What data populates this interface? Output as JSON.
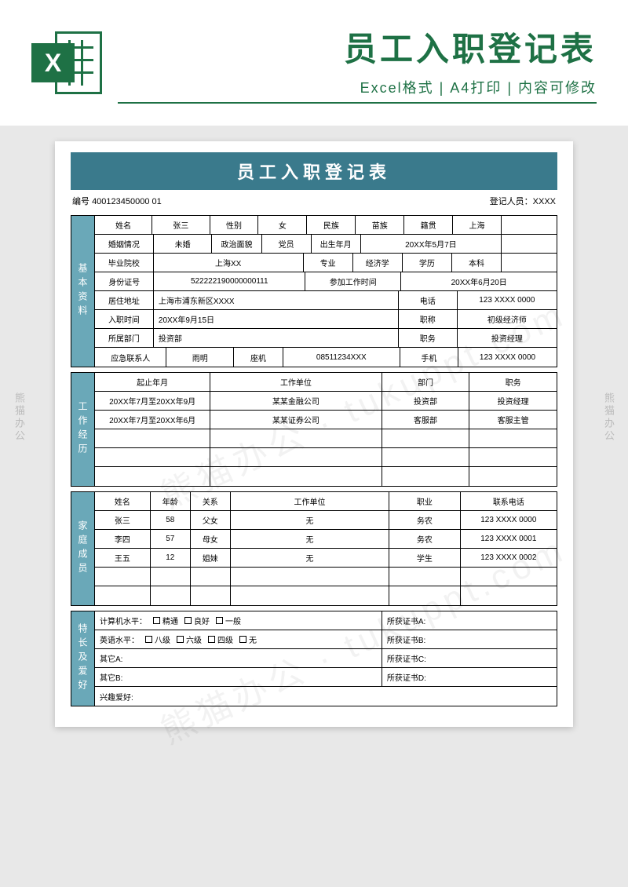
{
  "header": {
    "title": "员工入职登记表",
    "subtitle": "Excel格式 | A4打印 | 内容可修改",
    "icon_letter": "X"
  },
  "colors": {
    "brand_green": "#1e7145",
    "band_teal": "#3a7a8c",
    "side_teal": "#6aa8b8",
    "page_bg": "#e8e8e8"
  },
  "form": {
    "title": "员工入职登记表",
    "meta": {
      "id_label": "编号",
      "id": "400123450000 01",
      "registrar_label": "登记人员：",
      "registrar": "XXXX"
    },
    "sections": {
      "basic": {
        "label": "基本资料",
        "r1": {
          "name_l": "姓名",
          "name": "张三",
          "sex_l": "性别",
          "sex": "女",
          "nation_l": "民族",
          "nation": "苗族",
          "origin_l": "籍贯",
          "origin": "上海"
        },
        "r2": {
          "marital_l": "婚姻情况",
          "marital": "未婚",
          "polit_l": "政治面貌",
          "polit": "党员",
          "birth_l": "出生年月",
          "birth": "20XX年5月7日"
        },
        "r3": {
          "school_l": "毕业院校",
          "school": "上海XX",
          "major_l": "专业",
          "major": "经济学",
          "edu_l": "学历",
          "edu": "本科"
        },
        "r4": {
          "idno_l": "身份证号",
          "idno": "522222190000000111",
          "workdate_l": "参加工作时间",
          "workdate": "20XX年6月20日"
        },
        "r5": {
          "addr_l": "居住地址",
          "addr": "上海市浦东新区XXXX",
          "tel_l": "电话",
          "tel": "123 XXXX 0000"
        },
        "r6": {
          "entry_l": "入职时间",
          "entry": "20XX年9月15日",
          "title_l": "职称",
          "title": "初级经济师"
        },
        "r7": {
          "dept_l": "所属部门",
          "dept": "投资部",
          "duty_l": "职务",
          "duty": "投资经理"
        },
        "r8": {
          "emerg_l": "应急联系人",
          "emerg": "雨明",
          "land_l": "座机",
          "land": "08511234XXX",
          "mob_l": "手机",
          "mob": "123 XXXX 0000"
        }
      },
      "work": {
        "label": "工作经历",
        "headers": {
          "period": "起止年月",
          "company": "工作单位",
          "dept": "部门",
          "duty": "职务"
        },
        "rows": [
          {
            "period": "20XX年7月至20XX年9月",
            "company": "某某金融公司",
            "dept": "投资部",
            "duty": "投资经理"
          },
          {
            "period": "20XX年7月至20XX年6月",
            "company": "某某证券公司",
            "dept": "客服部",
            "duty": "客服主管"
          },
          {
            "period": "",
            "company": "",
            "dept": "",
            "duty": ""
          },
          {
            "period": "",
            "company": "",
            "dept": "",
            "duty": ""
          },
          {
            "period": "",
            "company": "",
            "dept": "",
            "duty": ""
          }
        ]
      },
      "family": {
        "label": "家庭成员",
        "headers": {
          "name": "姓名",
          "age": "年龄",
          "rel": "关系",
          "company": "工作单位",
          "job": "职业",
          "tel": "联系电话"
        },
        "rows": [
          {
            "name": "张三",
            "age": "58",
            "rel": "父女",
            "company": "无",
            "job": "务农",
            "tel": "123 XXXX 0000"
          },
          {
            "name": "李四",
            "age": "57",
            "rel": "母女",
            "company": "无",
            "job": "务农",
            "tel": "123 XXXX 0001"
          },
          {
            "name": "王五",
            "age": "12",
            "rel": "姐妹",
            "company": "无",
            "job": "学生",
            "tel": "123 XXXX 0002"
          },
          {
            "name": "",
            "age": "",
            "rel": "",
            "company": "",
            "job": "",
            "tel": ""
          },
          {
            "name": "",
            "age": "",
            "rel": "",
            "company": "",
            "job": "",
            "tel": ""
          }
        ]
      },
      "skills": {
        "label": "特长及爱好",
        "comp_l": "计算机水平：",
        "comp_opts": [
          "精通",
          "良好",
          "一般"
        ],
        "eng_l": "英语水平：",
        "eng_opts": [
          "八级",
          "六级",
          "四级",
          "无"
        ],
        "otherA_l": "其它A:",
        "otherB_l": "其它B:",
        "hobby_l": "兴趣爱好:",
        "certA_l": "所获证书A:",
        "certB_l": "所获证书B:",
        "certC_l": "所获证书C:",
        "certD_l": "所获证书D:"
      }
    }
  },
  "watermark": {
    "side": "熊猫办公",
    "diag": "熊猫办公 · tukuppt.com"
  }
}
